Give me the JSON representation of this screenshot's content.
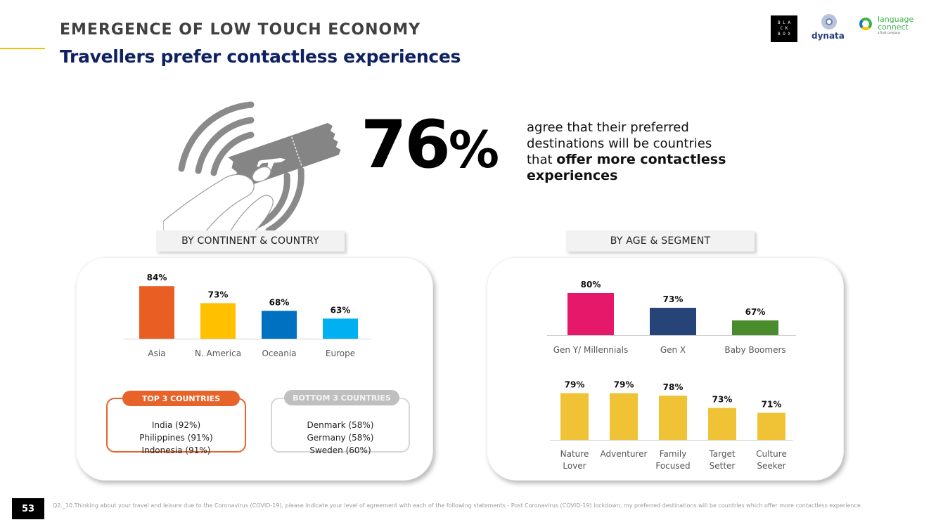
{
  "header": {
    "kicker": "EMERGENCE OF LOW TOUCH ECONOMY",
    "title": "Travellers prefer contactless experiences"
  },
  "logos": {
    "blackbox": [
      "B L A",
      "C K",
      "B O X"
    ],
    "dynata": "dynata",
    "language_connect": [
      "language",
      "connect",
      "a fluid company"
    ]
  },
  "hero": {
    "illustration_icon": "contactless-ticket-icon",
    "stat_number": "76",
    "stat_sign": "%",
    "text_plain_1": "agree that their preferred destinations will be countries that ",
    "text_bold": "offer more contactless experiences"
  },
  "panels": {
    "left_tag": "BY CONTINENT & COUNTRY",
    "right_tag": "BY AGE & SEGMENT"
  },
  "country_boxes": {
    "top": {
      "label": "TOP 3 COUNTRIES",
      "items": [
        "India (92%)",
        "Philippines (91%)",
        "Indonesia (91%)"
      ],
      "color": "#e8632a"
    },
    "bottom": {
      "label": "BOTTOM 3 COUNTRIES",
      "items": [
        "Denmark (58%)",
        "Germany (58%)",
        "Sweden (60%)"
      ],
      "color": "#bfbfbf"
    }
  },
  "chart_data": [
    {
      "id": "continent",
      "type": "bar",
      "title": "BY CONTINENT & COUNTRY",
      "categories": [
        "Asia",
        "N. America",
        "Oceania",
        "Europe"
      ],
      "values": [
        84,
        73,
        68,
        63
      ],
      "labels": [
        "84%",
        "73%",
        "68%",
        "63%"
      ],
      "colors": [
        "#e95e22",
        "#ffc000",
        "#0070c0",
        "#00b0f0"
      ],
      "ylim": [
        0,
        100
      ],
      "grid": false,
      "legend": "none"
    },
    {
      "id": "age",
      "type": "bar",
      "title": "BY AGE & SEGMENT",
      "categories": [
        "Gen Y/ Millennials",
        "Gen X",
        "Baby Boomers"
      ],
      "values": [
        80,
        73,
        67
      ],
      "labels": [
        "80%",
        "73%",
        "67%"
      ],
      "colors": [
        "#e6186a",
        "#264478",
        "#4a8b2c"
      ],
      "ylim": [
        0,
        100
      ],
      "grid": false,
      "legend": "none"
    },
    {
      "id": "segment",
      "type": "bar",
      "categories": [
        [
          "Nature",
          "Lover"
        ],
        [
          "Adventurer"
        ],
        [
          "Family",
          "Focused"
        ],
        [
          "Target",
          "Setter"
        ],
        [
          "Culture",
          "Seeker"
        ]
      ],
      "values": [
        79,
        79,
        78,
        73,
        71
      ],
      "labels": [
        "79%",
        "79%",
        "78%",
        "73%",
        "71%"
      ],
      "colors": [
        "#f0c337",
        "#f0c337",
        "#f0c337",
        "#f0c337",
        "#f0c337"
      ],
      "ylim": [
        0,
        100
      ],
      "grid": false,
      "legend": "none"
    }
  ],
  "footer": {
    "page_number": "53",
    "footnote": "Q2._10.Thinking about your travel and leisure due to the Coronavirus (COVID-19), please indicate your level of agreement with each of the following statements - Post Coronavirus (COVID-19) lockdown, my preferred destinations will be countries which offer more contactless experience."
  }
}
